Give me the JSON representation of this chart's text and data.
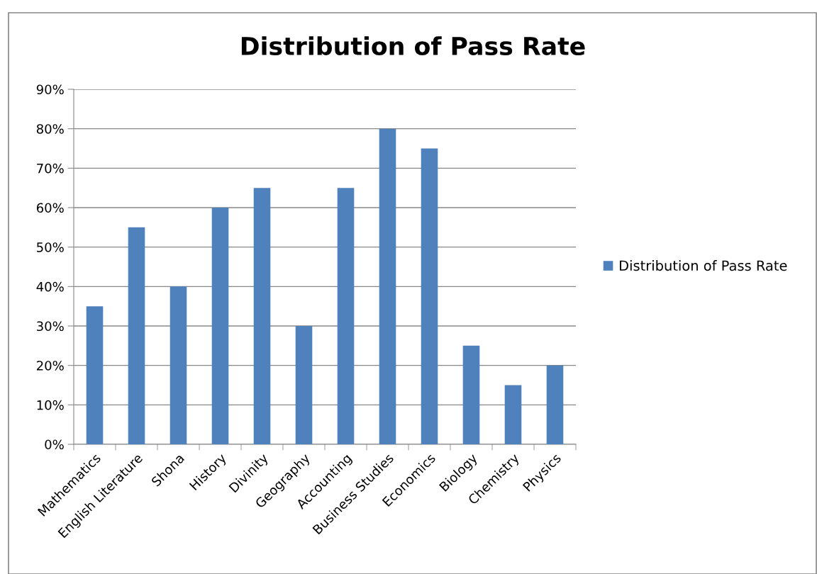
{
  "chart_data": {
    "type": "bar",
    "title": "Distribution of Pass Rate",
    "categories": [
      "Mathematics",
      "English Literature",
      "Shona",
      "History",
      "Divinity",
      "Geography",
      "Accounting",
      "Business Studies",
      "Economics",
      "Biology",
      "Chemistry",
      "Physics"
    ],
    "series": [
      {
        "name": "Distribution of Pass Rate",
        "color": "#4f81bd",
        "values": [
          35,
          55,
          40,
          60,
          65,
          30,
          65,
          80,
          75,
          25,
          15,
          20
        ]
      }
    ],
    "ylim": [
      0,
      90
    ],
    "yticks": [
      {
        "value": 0,
        "label": "0%"
      },
      {
        "value": 10,
        "label": "10%"
      },
      {
        "value": 20,
        "label": "20%"
      },
      {
        "value": 30,
        "label": "30%"
      },
      {
        "value": 40,
        "label": "40%"
      },
      {
        "value": 50,
        "label": "50%"
      },
      {
        "value": 60,
        "label": "60%"
      },
      {
        "value": 70,
        "label": "70%"
      },
      {
        "value": 80,
        "label": "80%"
      },
      {
        "value": 90,
        "label": "90%"
      }
    ],
    "grid": "y",
    "legend": "right"
  }
}
